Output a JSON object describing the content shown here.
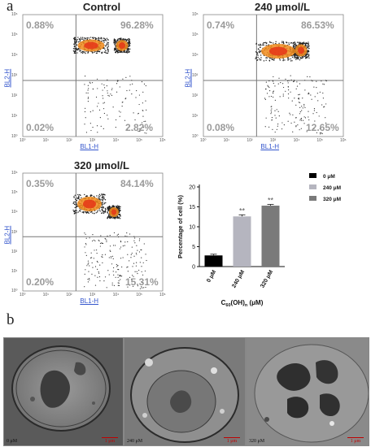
{
  "panel_a_label": "a",
  "panel_b_label": "b",
  "flow": {
    "y_axis_label": "BL2-H",
    "x_axis_label": "BL1-H",
    "y_ticks": [
      "10⁶",
      "10⁵",
      "10⁴",
      "10³",
      "10²",
      "10¹",
      "10⁰"
    ],
    "x_ticks": [
      "10⁰",
      "10¹",
      "10²",
      "10³",
      "10⁴",
      "10⁵",
      "10⁶"
    ],
    "plots": [
      {
        "title": "Control",
        "ul": "0.88%",
        "ur": "96.28%",
        "ll": "0.02%",
        "lr": "2.82%"
      },
      {
        "title": "240 μmol/L",
        "ul": "0.74%",
        "ur": "86.53%",
        "ll": "0.08%",
        "lr": "12.65%"
      },
      {
        "title": "320 μmol/L",
        "ul": "0.35%",
        "ur": "84.14%",
        "ll": "0.20%",
        "lr": "15.31%"
      }
    ]
  },
  "chart_data": {
    "type": "bar",
    "categories": [
      "0 μM",
      "240 μM",
      "320 μM"
    ],
    "values": [
      2.8,
      12.6,
      15.3
    ],
    "errors": [
      0.3,
      0.4,
      0.3
    ],
    "significance": [
      "",
      "**",
      "**"
    ],
    "colors": [
      "#000000",
      "#b5b5bf",
      "#7a7a7a"
    ],
    "legend": [
      "0 μM",
      "240 μM",
      "320 μM"
    ],
    "legend_position": "top-right",
    "ylabel": "Percentage of cell (%)",
    "xlabel_main": "C",
    "xlabel_sub1": "60",
    "xlabel_mid": "(OH)",
    "xlabel_sub2": "n",
    "xlabel_tail": " (μM)",
    "ylim": [
      0,
      20
    ],
    "yticks": [
      "0",
      "5",
      "10",
      "15",
      "20"
    ]
  },
  "em": [
    {
      "label": "0 μM",
      "scale": "1 μm"
    },
    {
      "label": "240 μM",
      "scale": "1 μm"
    },
    {
      "label": "320 μM",
      "scale": "1 μm"
    }
  ]
}
